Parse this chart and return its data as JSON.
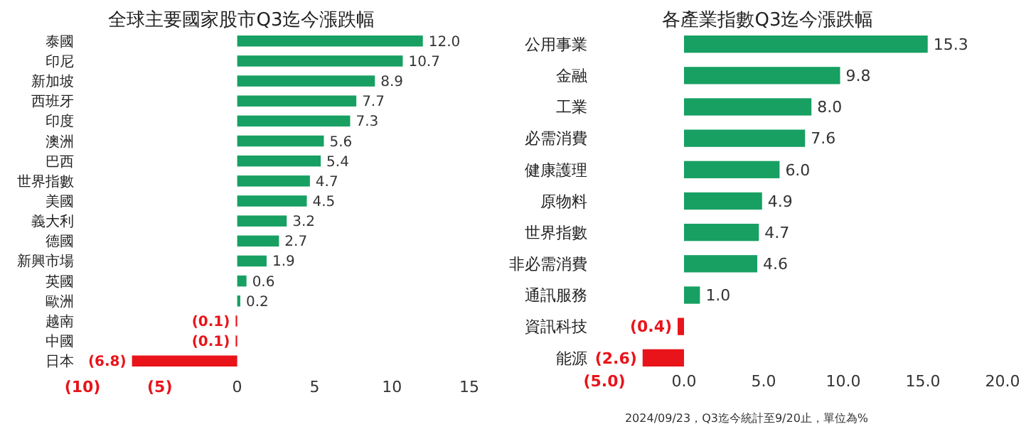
{
  "chart_data": [
    {
      "type": "bar",
      "orientation": "horizontal",
      "title": "全球主要國家股市Q3迄今漲跌幅",
      "categories": [
        "泰國",
        "印尼",
        "新加坡",
        "西班牙",
        "印度",
        "澳洲",
        "巴西",
        "世界指數",
        "美國",
        "義大利",
        "德國",
        "新興市場",
        "英國",
        "歐洲",
        "越南",
        "中國",
        "日本"
      ],
      "values": [
        12.0,
        10.7,
        8.9,
        7.7,
        7.3,
        5.6,
        5.4,
        4.7,
        4.5,
        3.2,
        2.7,
        1.9,
        0.6,
        0.2,
        -0.1,
        -0.1,
        -6.8
      ],
      "colors": [
        "#17a062",
        "#17a062",
        "#17a062",
        "#17a062",
        "#17a062",
        "#17a062",
        "#17a062",
        "#17a062",
        "#17a062",
        "#17a062",
        "#17a062",
        "#17a062",
        "#17a062",
        "#17a062",
        "#e8141a",
        "#e8141a",
        "#e8141a"
      ],
      "value_labels": [
        "12.0",
        "10.7",
        "8.9",
        "7.7",
        "7.3",
        "5.6",
        "5.4",
        "4.7",
        "4.5",
        "3.2",
        "2.7",
        "1.9",
        "0.6",
        "0.2",
        "(0.1)",
        "(0.1)",
        "(6.8)"
      ],
      "xlim": [
        -10,
        15
      ],
      "xticks": [
        {
          "value": -10,
          "label": "(10)"
        },
        {
          "value": -5,
          "label": "(5)"
        },
        0,
        5,
        10,
        15
      ]
    },
    {
      "type": "bar",
      "orientation": "horizontal",
      "title": "各產業指數Q3迄今漲跌幅",
      "categories": [
        "公用事業",
        "金融",
        "工業",
        "必需消費",
        "健康護理",
        "原物料",
        "世界指數",
        "非必需消費",
        "通訊服務",
        "資訊科技",
        "能源"
      ],
      "values": [
        15.3,
        9.8,
        8.0,
        7.6,
        6.0,
        4.9,
        4.7,
        4.6,
        1.0,
        -0.4,
        -2.6
      ],
      "colors": [
        "#17a062",
        "#17a062",
        "#17a062",
        "#17a062",
        "#17a062",
        "#17a062",
        "#17a062",
        "#17a062",
        "#17a062",
        "#e8141a",
        "#e8141a"
      ],
      "value_labels": [
        "15.3",
        "9.8",
        "8.0",
        "7.6",
        "6.0",
        "4.9",
        "4.7",
        "4.6",
        "1.0",
        "(0.4)",
        "(2.6)"
      ],
      "xlim": [
        -5,
        20
      ],
      "xticks": [
        {
          "value": -5,
          "label": "(5.0)"
        },
        {
          "value": 0,
          "label": "0.0"
        },
        {
          "value": 5,
          "label": "5.0"
        },
        {
          "value": 10,
          "label": "10.0"
        },
        {
          "value": 15,
          "label": "15.0"
        },
        {
          "value": 20,
          "label": "20.0"
        }
      ],
      "annotations": [
        "2024/09/23，Q3迄今統計至9/20止，單位為%"
      ]
    }
  ]
}
